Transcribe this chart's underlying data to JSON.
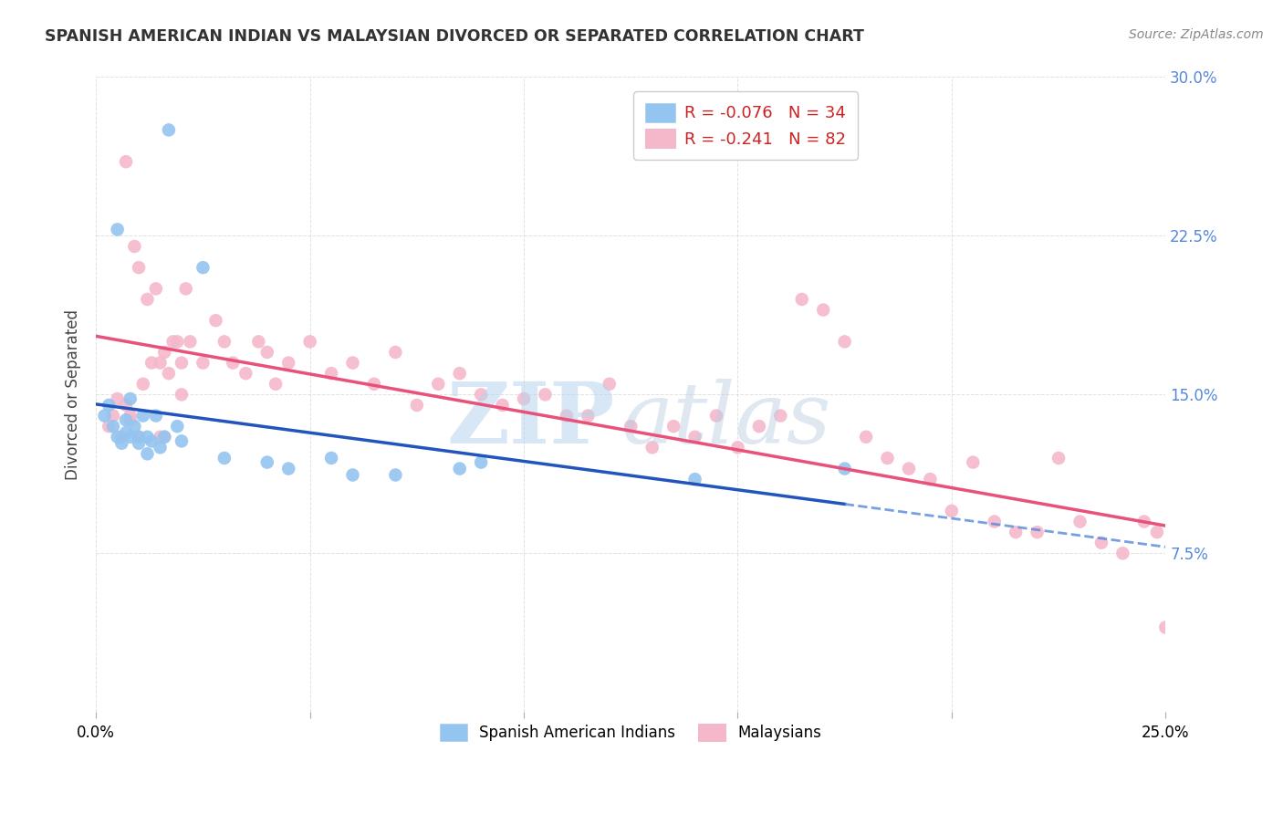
{
  "title": "SPANISH AMERICAN INDIAN VS MALAYSIAN DIVORCED OR SEPARATED CORRELATION CHART",
  "source": "Source: ZipAtlas.com",
  "ylabel": "Divorced or Separated",
  "xlim": [
    0.0,
    0.25
  ],
  "ylim": [
    0.0,
    0.3
  ],
  "xtick_positions": [
    0.0,
    0.05,
    0.1,
    0.15,
    0.2,
    0.25
  ],
  "xticklabels": [
    "0.0%",
    "",
    "",
    "",
    "",
    "25.0%"
  ],
  "ytick_positions": [
    0.0,
    0.075,
    0.15,
    0.225,
    0.3
  ],
  "yticklabels_right": [
    "",
    "7.5%",
    "15.0%",
    "22.5%",
    "30.0%"
  ],
  "blue_R": -0.076,
  "blue_N": 34,
  "pink_R": -0.241,
  "pink_N": 82,
  "blue_color": "#94c4f0",
  "pink_color": "#f5b8cb",
  "blue_line_color": "#2255bb",
  "pink_line_color": "#e8517a",
  "blue_line_dash_color": "#5588dd",
  "legend_border_color": "#cccccc",
  "grid_color": "#cccccc",
  "title_color": "#333333",
  "source_color": "#888888",
  "right_axis_color": "#5588dd",
  "blue_x": [
    0.002,
    0.003,
    0.004,
    0.005,
    0.005,
    0.006,
    0.007,
    0.007,
    0.008,
    0.008,
    0.009,
    0.01,
    0.01,
    0.011,
    0.012,
    0.012,
    0.013,
    0.014,
    0.015,
    0.016,
    0.017,
    0.019,
    0.02,
    0.025,
    0.03,
    0.04,
    0.045,
    0.055,
    0.06,
    0.07,
    0.085,
    0.09,
    0.14,
    0.175
  ],
  "blue_y": [
    0.14,
    0.145,
    0.135,
    0.228,
    0.13,
    0.127,
    0.138,
    0.132,
    0.13,
    0.148,
    0.135,
    0.13,
    0.127,
    0.14,
    0.13,
    0.122,
    0.128,
    0.14,
    0.125,
    0.13,
    0.275,
    0.135,
    0.128,
    0.21,
    0.12,
    0.118,
    0.115,
    0.12,
    0.112,
    0.112,
    0.115,
    0.118,
    0.11,
    0.115
  ],
  "pink_x": [
    0.003,
    0.004,
    0.005,
    0.006,
    0.007,
    0.007,
    0.008,
    0.008,
    0.009,
    0.01,
    0.01,
    0.011,
    0.012,
    0.013,
    0.014,
    0.015,
    0.015,
    0.016,
    0.016,
    0.017,
    0.018,
    0.019,
    0.02,
    0.02,
    0.021,
    0.022,
    0.025,
    0.028,
    0.03,
    0.032,
    0.035,
    0.038,
    0.04,
    0.042,
    0.045,
    0.05,
    0.055,
    0.06,
    0.065,
    0.07,
    0.075,
    0.08,
    0.085,
    0.09,
    0.095,
    0.1,
    0.105,
    0.11,
    0.115,
    0.12,
    0.125,
    0.13,
    0.135,
    0.14,
    0.145,
    0.15,
    0.155,
    0.16,
    0.165,
    0.17,
    0.175,
    0.18,
    0.185,
    0.19,
    0.195,
    0.2,
    0.205,
    0.21,
    0.215,
    0.22,
    0.225,
    0.23,
    0.235,
    0.24,
    0.245,
    0.248,
    0.25,
    0.252,
    0.253,
    0.254,
    0.255,
    0.256
  ],
  "pink_y": [
    0.135,
    0.14,
    0.148,
    0.13,
    0.145,
    0.26,
    0.14,
    0.138,
    0.22,
    0.13,
    0.21,
    0.155,
    0.195,
    0.165,
    0.2,
    0.165,
    0.13,
    0.17,
    0.13,
    0.16,
    0.175,
    0.175,
    0.165,
    0.15,
    0.2,
    0.175,
    0.165,
    0.185,
    0.175,
    0.165,
    0.16,
    0.175,
    0.17,
    0.155,
    0.165,
    0.175,
    0.16,
    0.165,
    0.155,
    0.17,
    0.145,
    0.155,
    0.16,
    0.15,
    0.145,
    0.148,
    0.15,
    0.14,
    0.14,
    0.155,
    0.135,
    0.125,
    0.135,
    0.13,
    0.14,
    0.125,
    0.135,
    0.14,
    0.195,
    0.19,
    0.175,
    0.13,
    0.12,
    0.115,
    0.11,
    0.095,
    0.118,
    0.09,
    0.085,
    0.085,
    0.12,
    0.09,
    0.08,
    0.075,
    0.09,
    0.085,
    0.04,
    0.08,
    0.075,
    0.07,
    0.035,
    0.04
  ]
}
